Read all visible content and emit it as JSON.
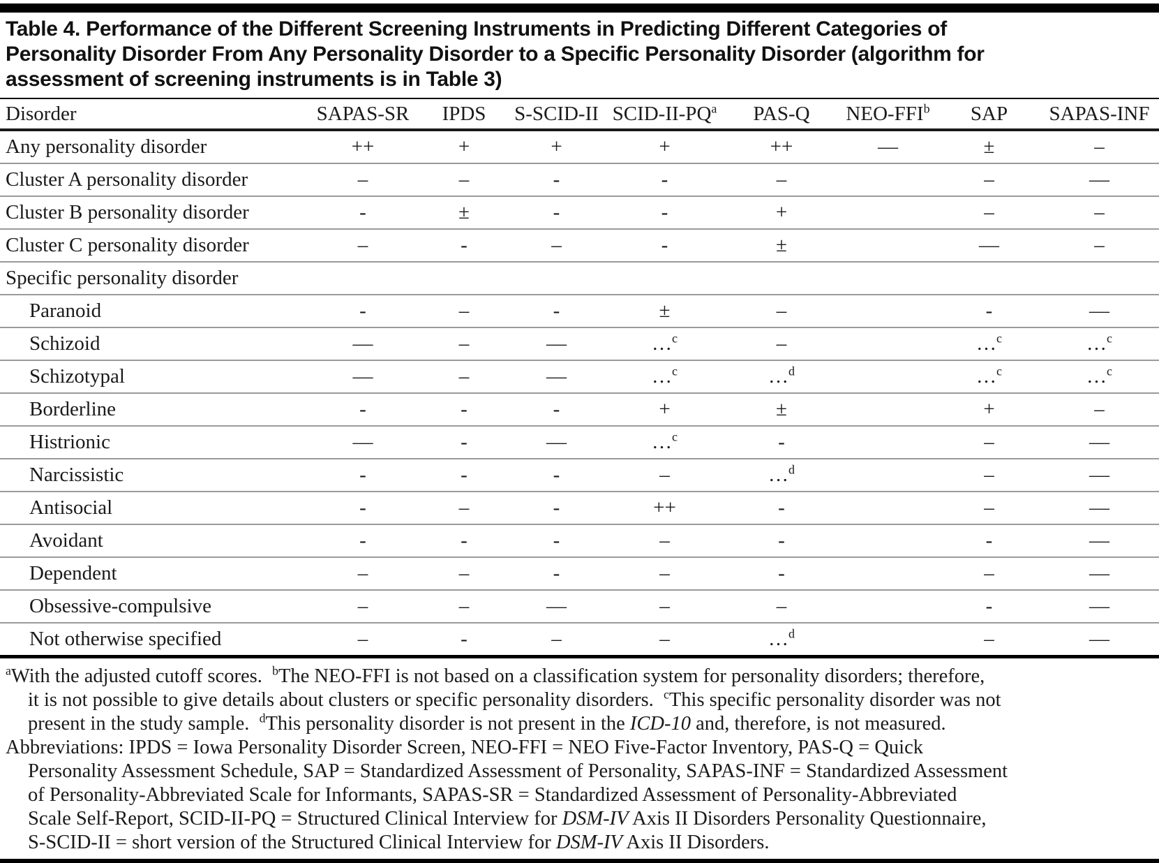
{
  "colors": {
    "rule_black": "#000000",
    "row_separator": "#9a9a9a",
    "text": "#1a1a1a"
  },
  "title": {
    "lines": [
      "Table 4. Performance of the Different Screening Instruments in Predicting Different Categories of",
      "Personality Disorder From Any Personality Disorder to a Specific Personality Disorder (algorithm for",
      "assessment of screening instruments is in Table 3)"
    ]
  },
  "table": {
    "columns": [
      "Disorder",
      "SAPAS-SR",
      "IPDS",
      "S-SCID-II",
      "SCID-II-PQ^a",
      "PAS-Q",
      "NEO-FFI^b",
      "SAP",
      "SAPAS-INF"
    ],
    "rows": [
      {
        "label": "Any personality disorder",
        "indent": false,
        "section": false,
        "values": [
          "++",
          "+",
          "+",
          "+",
          "++",
          "—",
          "±",
          "–"
        ]
      },
      {
        "label": "Cluster A personality disorder",
        "indent": false,
        "section": false,
        "values": [
          "–",
          "–",
          "-",
          "-",
          "–",
          "",
          "–",
          "—"
        ]
      },
      {
        "label": "Cluster B personality disorder",
        "indent": false,
        "section": false,
        "values": [
          "-",
          "±",
          "-",
          "-",
          "+",
          "",
          "–",
          "–"
        ]
      },
      {
        "label": "Cluster C personality disorder",
        "indent": false,
        "section": false,
        "values": [
          "–",
          "-",
          "–",
          "-",
          "±",
          "",
          "—",
          "–"
        ]
      },
      {
        "label": "Specific personality disorder",
        "indent": false,
        "section": true,
        "values": [
          "",
          "",
          "",
          "",
          "",
          "",
          "",
          ""
        ]
      },
      {
        "label": "Paranoid",
        "indent": true,
        "section": false,
        "values": [
          "-",
          "–",
          "-",
          "±",
          "–",
          "",
          "-",
          "—"
        ]
      },
      {
        "label": "Schizoid",
        "indent": true,
        "section": false,
        "values": [
          "—",
          "–",
          "—",
          "…^c",
          "–",
          "",
          "…^c",
          "…^c"
        ]
      },
      {
        "label": "Schizotypal",
        "indent": true,
        "section": false,
        "values": [
          "—",
          "–",
          "—",
          "…^c",
          "…^d",
          "",
          "…^c",
          "…^c"
        ]
      },
      {
        "label": "Borderline",
        "indent": true,
        "section": false,
        "values": [
          "-",
          "-",
          "-",
          "+",
          "±",
          "",
          "+",
          "–"
        ]
      },
      {
        "label": "Histrionic",
        "indent": true,
        "section": false,
        "values": [
          "—",
          "-",
          "—",
          "…^c",
          "-",
          "",
          "–",
          "—"
        ]
      },
      {
        "label": "Narcissistic",
        "indent": true,
        "section": false,
        "values": [
          "-",
          "-",
          "-",
          "–",
          "…^d",
          "",
          "–",
          "—"
        ]
      },
      {
        "label": "Antisocial",
        "indent": true,
        "section": false,
        "values": [
          "-",
          "–",
          "-",
          "++",
          "-",
          "",
          "–",
          "—"
        ]
      },
      {
        "label": "Avoidant",
        "indent": true,
        "section": false,
        "values": [
          "-",
          "-",
          "-",
          "–",
          "-",
          "",
          "-",
          "—"
        ]
      },
      {
        "label": "Dependent",
        "indent": true,
        "section": false,
        "values": [
          "–",
          "–",
          "-",
          "–",
          "-",
          "",
          "–",
          "—"
        ]
      },
      {
        "label": "Obsessive-compulsive",
        "indent": true,
        "section": false,
        "values": [
          "–",
          "–",
          "—",
          "–",
          "–",
          "",
          "-",
          "—"
        ]
      },
      {
        "label": "Not otherwise specified",
        "indent": true,
        "section": false,
        "values": [
          "–",
          "-",
          "–",
          "–",
          "…^d",
          "",
          "–",
          "—"
        ]
      }
    ]
  },
  "footnotes": {
    "lines": [
      {
        "indent": false,
        "segments": [
          {
            "sup": "a"
          },
          {
            "t": "With the adjusted cutoff scores.  "
          },
          {
            "sup": "b"
          },
          {
            "t": "The NEO-FFI is not based on a classification system for personality disorders; therefore,"
          }
        ]
      },
      {
        "indent": true,
        "segments": [
          {
            "t": "it is not possible to give details about clusters or specific personality disorders.  "
          },
          {
            "sup": "c"
          },
          {
            "t": "This specific personality disorder was not"
          }
        ]
      },
      {
        "indent": true,
        "segments": [
          {
            "t": "present in the study sample.  "
          },
          {
            "sup": "d"
          },
          {
            "t": "This personality disorder is not present in the "
          },
          {
            "t": "ICD-10",
            "i": true
          },
          {
            "t": " and, therefore, is not measured."
          }
        ]
      },
      {
        "indent": false,
        "segments": [
          {
            "t": "Abbreviations: IPDS = Iowa Personality Disorder Screen, NEO-FFI = NEO Five-Factor Inventory, PAS-Q = Quick"
          }
        ]
      },
      {
        "indent": true,
        "segments": [
          {
            "t": "Personality Assessment Schedule, SAP = Standardized Assessment of Personality, SAPAS-INF = Standardized Assessment"
          }
        ]
      },
      {
        "indent": true,
        "segments": [
          {
            "t": "of Personality-Abbreviated Scale for Informants, SAPAS-SR = Standardized Assessment of Personality-Abbreviated"
          }
        ]
      },
      {
        "indent": true,
        "segments": [
          {
            "t": "Scale Self-Report, SCID-II-PQ = Structured Clinical Interview for "
          },
          {
            "t": "DSM-IV",
            "i": true
          },
          {
            "t": " Axis II Disorders Personality Questionnaire,"
          }
        ]
      },
      {
        "indent": true,
        "segments": [
          {
            "t": "S-SCID-II = short version of the Structured Clinical Interview for "
          },
          {
            "t": "DSM-IV",
            "i": true
          },
          {
            "t": " Axis II Disorders."
          }
        ]
      }
    ]
  }
}
